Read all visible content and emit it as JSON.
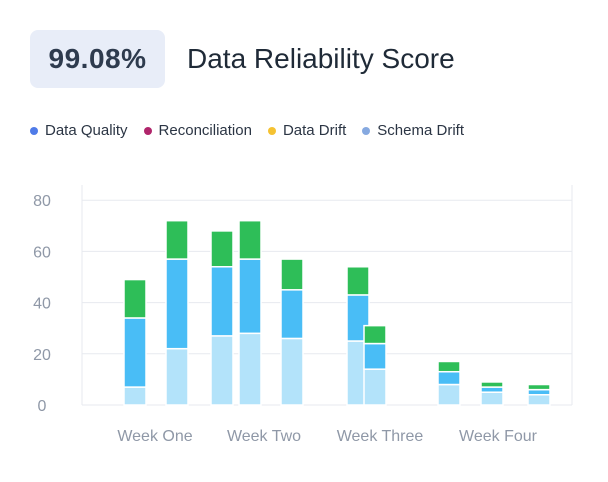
{
  "header": {
    "score": "99.08%",
    "title": "Data Reliability Score"
  },
  "legend": [
    {
      "label": "Data Quality",
      "color": "#4f7be8"
    },
    {
      "label": "Reconciliation",
      "color": "#b0256b"
    },
    {
      "label": "Data Drift",
      "color": "#f5c232"
    },
    {
      "label": "Schema Drift",
      "color": "#86a9e0"
    }
  ],
  "colors": {
    "segment_bottom": "#b3e3fa",
    "segment_middle": "#49bdf6",
    "segment_top": "#2ebe58",
    "grid": "#e7eaef"
  },
  "chart_data": {
    "type": "bar",
    "stacked": true,
    "categories": [
      "Week One",
      "Week Two",
      "Week Three",
      "Week Four"
    ],
    "yticks": [
      0,
      20,
      40,
      60,
      80
    ],
    "ylim": [
      0,
      85
    ],
    "grid": true,
    "bars": [
      {
        "category": "Week One",
        "values": [
          7,
          27,
          15
        ]
      },
      {
        "category": "Week One",
        "values": [
          22,
          35,
          15
        ]
      },
      {
        "category": "Week Two",
        "values": [
          27,
          27,
          14
        ]
      },
      {
        "category": "Week Two",
        "values": [
          28,
          29,
          15
        ]
      },
      {
        "category": "Week Two",
        "values": [
          26,
          19,
          12
        ]
      },
      {
        "category": "Week Three",
        "values": [
          25,
          18,
          11
        ]
      },
      {
        "category": "Week Three",
        "values": [
          14,
          10,
          7
        ]
      },
      {
        "category": "Week Four",
        "values": [
          8,
          5,
          4
        ]
      },
      {
        "category": "Week Four",
        "values": [
          5,
          2,
          2
        ]
      },
      {
        "category": "Week Four",
        "values": [
          4,
          2,
          2
        ]
      }
    ]
  }
}
